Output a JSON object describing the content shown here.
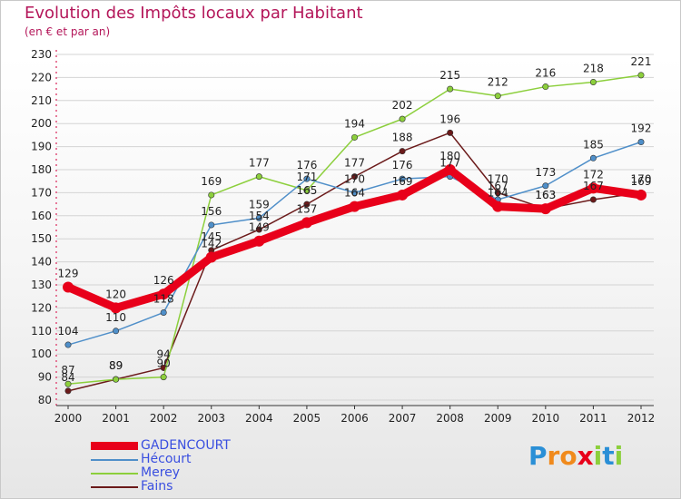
{
  "header": {
    "title": "Evolution des Impôts locaux par Habitant",
    "subtitle": "(en € et par an)"
  },
  "logo": {
    "letters": [
      "P",
      "r",
      "o",
      "x",
      "i",
      "t",
      "i"
    ]
  },
  "chart_data": {
    "type": "line",
    "title": "Evolution des Impôts locaux par Habitant",
    "subtitle": "(en € et par an)",
    "xlabel": "",
    "ylabel": "",
    "ylim": [
      80,
      230
    ],
    "yticks": [
      80,
      90,
      100,
      110,
      120,
      130,
      140,
      150,
      160,
      170,
      180,
      190,
      200,
      210,
      220,
      230
    ],
    "x": [
      "2000",
      "2001",
      "2002",
      "2003",
      "2004",
      "2005",
      "2006",
      "2007",
      "2008",
      "2009",
      "2010",
      "2011",
      "2012"
    ],
    "legend_position": "bottom-left",
    "series": [
      {
        "name": "Fains",
        "color": "#6b1a1a",
        "values": [
          84,
          89,
          94,
          145,
          154,
          165,
          177,
          188,
          196,
          170,
          163,
          167,
          170
        ]
      },
      {
        "name": "Merey",
        "color": "#8ccf3c",
        "values": [
          87,
          89,
          90,
          169,
          177,
          171,
          194,
          202,
          215,
          212,
          216,
          218,
          221
        ]
      },
      {
        "name": "Hécourt",
        "color": "#4f8fc9",
        "values": [
          104,
          110,
          118,
          156,
          159,
          176,
          170,
          176,
          177,
          167,
          173,
          185,
          192
        ]
      },
      {
        "name": "GADENCOURT",
        "color": "#e8001a",
        "values": [
          129,
          120,
          126,
          142,
          149,
          157,
          164,
          169,
          180,
          164,
          163,
          172,
          169
        ]
      }
    ]
  }
}
